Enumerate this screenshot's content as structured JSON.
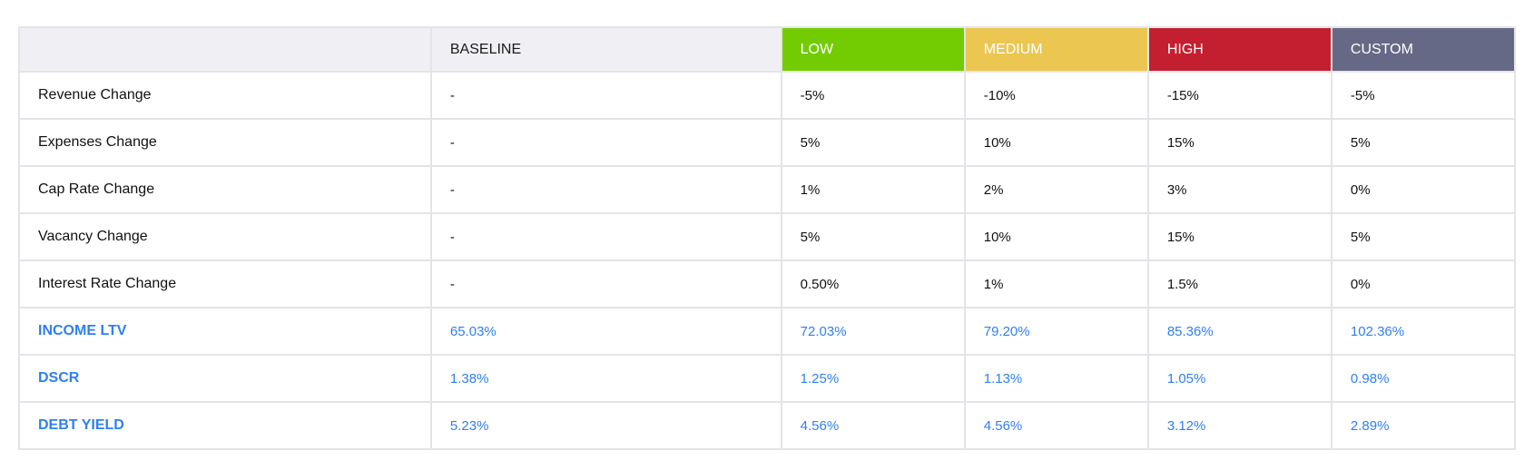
{
  "columns": {
    "blank": "",
    "baseline": "BASELINE",
    "low": "LOW",
    "medium": "MEDIUM",
    "high": "HIGH",
    "custom": "CUSTOM"
  },
  "colors": {
    "low": "#73cc02",
    "medium": "#ebc752",
    "high": "#c31f30",
    "custom": "#666985",
    "metric_text": "#2f7ff0"
  },
  "rows": [
    {
      "label": "Revenue Change",
      "baseline": "-",
      "low": "-5%",
      "medium": "-10%",
      "high": "-15%",
      "custom": "-5%"
    },
    {
      "label": "Expenses Change",
      "baseline": "-",
      "low": "5%",
      "medium": "10%",
      "high": "15%",
      "custom": "5%"
    },
    {
      "label": "Cap Rate Change",
      "baseline": "-",
      "low": "1%",
      "medium": "2%",
      "high": "3%",
      "custom": "0%"
    },
    {
      "label": "Vacancy Change",
      "baseline": "-",
      "low": "5%",
      "medium": "10%",
      "high": "15%",
      "custom": "5%"
    },
    {
      "label": "Interest Rate Change",
      "baseline": "-",
      "low": "0.50%",
      "medium": "1%",
      "high": "1.5%",
      "custom": "0%"
    }
  ],
  "metrics": [
    {
      "label": "INCOME LTV",
      "baseline": "65.03%",
      "low": "72.03%",
      "medium": "79.20%",
      "high": "85.36%",
      "custom": "102.36%"
    },
    {
      "label": "DSCR",
      "baseline": "1.38%",
      "low": "1.25%",
      "medium": "1.13%",
      "high": "1.05%",
      "custom": "0.98%"
    },
    {
      "label": "DEBT YIELD",
      "baseline": "5.23%",
      "low": "4.56%",
      "medium": "4.56%",
      "high": "3.12%",
      "custom": "2.89%"
    }
  ]
}
